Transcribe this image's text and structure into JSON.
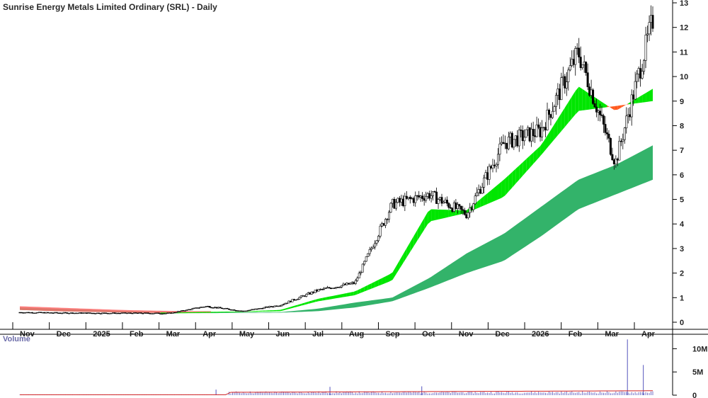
{
  "chart_data": {
    "type": "candlestick",
    "title": "Sunrise Energy Metals Limited Ordinary (SRL) - Daily",
    "x_tick_labels": [
      "Nov",
      "Dec",
      "2025",
      "Feb",
      "Mar",
      "Apr",
      "May",
      "Jun",
      "Jul",
      "Aug",
      "Sep",
      "Oct",
      "Nov",
      "Dec",
      "2026",
      "Feb",
      "Mar",
      "Apr"
    ],
    "price_axis": {
      "ticks": [
        0,
        1,
        2,
        3,
        4,
        5,
        6,
        7,
        8,
        9,
        10,
        11,
        12,
        13
      ],
      "ylim": [
        0,
        13
      ]
    },
    "volume_panel": {
      "title": "Volume",
      "tick_labels": [
        "0",
        "5M",
        "10M"
      ],
      "tick_values": [
        0,
        5000000,
        10000000
      ],
      "ylim": [
        0,
        12500000
      ]
    },
    "price_series_close_approx": [
      {
        "month": "Nov",
        "close": 0.4
      },
      {
        "month": "Dec",
        "close": 0.38
      },
      {
        "month": "2025",
        "close": 0.37
      },
      {
        "month": "Feb",
        "close": 0.37
      },
      {
        "month": "Mar",
        "close": 0.36
      },
      {
        "month": "Apr",
        "close": 0.65
      },
      {
        "month": "May",
        "close": 0.45
      },
      {
        "month": "Jun",
        "close": 0.7
      },
      {
        "month": "Jul",
        "close": 1.3
      },
      {
        "month": "Aug",
        "close": 1.6
      },
      {
        "month": "Sep",
        "close": 4.8
      },
      {
        "month": "Oct",
        "close": 5.2
      },
      {
        "month": "Nov",
        "close": 4.4
      },
      {
        "month": "Dec",
        "close": 7.3
      },
      {
        "month": "2026",
        "close": 7.8
      },
      {
        "month": "Feb",
        "close": 11.0
      },
      {
        "month": "Mar",
        "close": 6.5
      },
      {
        "month": "Apr",
        "close": 12.3
      }
    ],
    "short_term_band_upper_approx": [
      0.45,
      0.42,
      0.4,
      0.4,
      0.39,
      0.42,
      0.44,
      0.5,
      0.95,
      1.25,
      2.0,
      4.6,
      4.55,
      5.8,
      7.2,
      9.6,
      8.6,
      9.5
    ],
    "short_term_band_lower_approx": [
      0.4,
      0.38,
      0.37,
      0.37,
      0.36,
      0.38,
      0.42,
      0.45,
      0.85,
      1.1,
      1.7,
      4.1,
      4.45,
      5.1,
      6.8,
      8.6,
      8.8,
      9.0
    ],
    "long_term_band_upper_approx": [
      0.6,
      0.55,
      0.5,
      0.45,
      0.42,
      0.4,
      0.4,
      0.41,
      0.55,
      0.8,
      1.0,
      1.8,
      2.8,
      3.6,
      4.7,
      5.8,
      6.4,
      7.2
    ],
    "long_term_band_lower_approx": [
      0.5,
      0.45,
      0.42,
      0.4,
      0.38,
      0.37,
      0.38,
      0.39,
      0.45,
      0.6,
      0.85,
      1.4,
      2.0,
      2.5,
      3.5,
      4.6,
      5.2,
      5.8
    ],
    "volume_spikes_approx": [
      {
        "month": "Apr",
        "volume": 1200000
      },
      {
        "month": "Jul",
        "volume": 1800000
      },
      {
        "month": "Sep",
        "volume": 1900000
      },
      {
        "month": "Mar",
        "volume": 12000000
      },
      {
        "month": "Mar",
        "volume": 6500000
      }
    ],
    "colors": {
      "up_candle": "#ffffff",
      "down_candle": "#000000",
      "short_band_bull": "#00e600",
      "short_band_bear": "#ff5a1f",
      "long_band": "#33b36a",
      "early_band": "#ff6b6b",
      "volume_bar": "#7070c8",
      "volume_avg": "#d22020"
    }
  }
}
